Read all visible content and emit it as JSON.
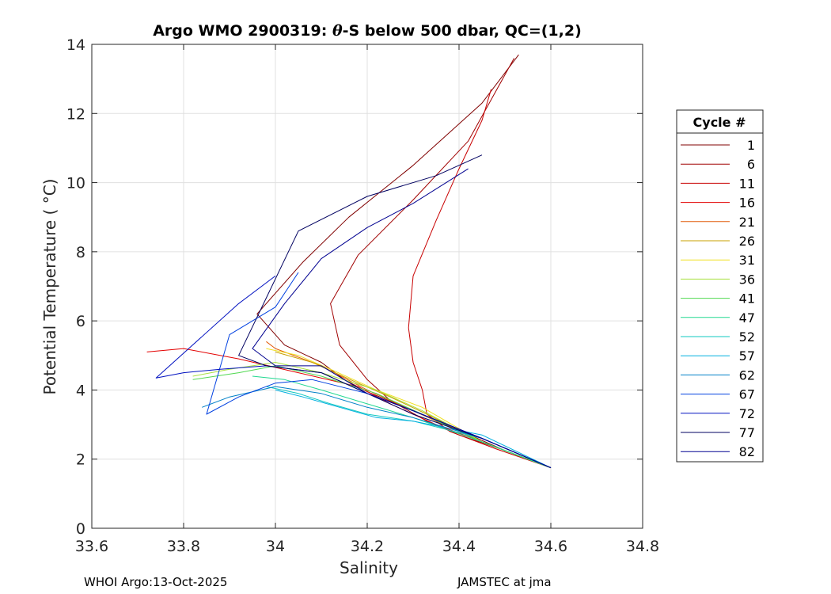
{
  "chart_data": {
    "type": "line",
    "title_prefix": "Argo WMO 2900319: ",
    "title_theta": "θ",
    "title_suffix": "-S below 500 dbar,  QC=(1,2)",
    "xlabel": "Salinity",
    "ylabel": "Potential Temperature ( °C)",
    "xlim": [
      33.6,
      34.8
    ],
    "ylim": [
      0,
      14
    ],
    "xticks": [
      33.6,
      33.8,
      34,
      34.2,
      34.4,
      34.6,
      34.8
    ],
    "xtick_labels": [
      "33.6",
      "33.8",
      "34",
      "34.2",
      "34.4",
      "34.6",
      "34.8"
    ],
    "yticks": [
      0,
      2,
      4,
      6,
      8,
      10,
      12,
      14
    ],
    "ytick_labels": [
      "0",
      "2",
      "4",
      "6",
      "8",
      "10",
      "12",
      "14"
    ],
    "grid": true,
    "legend_title": "Cycle #",
    "legend_position": "right-outside",
    "series": [
      {
        "name": "1",
        "color": "#800000",
        "x": [
          34.6,
          34.5,
          34.38,
          34.3,
          34.2,
          34.15,
          34.1,
          34.02,
          33.96,
          34.06,
          34.16,
          34.3,
          34.45,
          34.53
        ],
        "y": [
          1.75,
          2.25,
          2.95,
          3.4,
          3.95,
          4.3,
          4.8,
          5.3,
          6.2,
          7.7,
          9.0,
          10.5,
          12.3,
          13.7
        ]
      },
      {
        "name": "6",
        "color": "#a00000",
        "x": [
          34.6,
          34.5,
          34.4,
          34.33,
          34.25,
          34.2,
          34.14,
          34.12,
          34.18,
          34.3,
          34.42,
          34.52
        ],
        "y": [
          1.75,
          2.25,
          2.7,
          3.1,
          3.7,
          4.3,
          5.3,
          6.5,
          7.9,
          9.5,
          11.2,
          13.6
        ]
      },
      {
        "name": "11",
        "color": "#c80000",
        "x": [
          34.6,
          34.48,
          34.38,
          34.33,
          34.32,
          34.3,
          34.29,
          34.3,
          34.35,
          34.4,
          34.45,
          34.47
        ],
        "y": [
          1.75,
          2.3,
          2.8,
          3.3,
          4.0,
          4.8,
          5.8,
          7.3,
          8.9,
          10.4,
          11.8,
          12.7
        ]
      },
      {
        "name": "16",
        "color": "#e30000",
        "x": [
          34.6,
          34.45,
          34.35,
          34.25,
          34.18,
          34.05,
          33.92,
          33.8,
          33.72
        ],
        "y": [
          1.75,
          2.5,
          3.0,
          3.6,
          4.1,
          4.5,
          4.9,
          5.2,
          5.1
        ]
      },
      {
        "name": "21",
        "color": "#e25a08",
        "x": [
          34.6,
          34.45,
          34.3,
          34.2,
          34.1,
          34.0,
          33.98
        ],
        "y": [
          1.75,
          2.5,
          3.4,
          4.0,
          4.7,
          5.2,
          5.4
        ]
      },
      {
        "name": "26",
        "color": "#c8a000",
        "x": [
          34.6,
          34.45,
          34.33,
          34.25,
          34.18,
          34.08,
          34.0
        ],
        "y": [
          1.75,
          2.5,
          3.3,
          3.8,
          4.2,
          4.8,
          5.1
        ]
      },
      {
        "name": "31",
        "color": "#f0e020",
        "x": [
          34.6,
          34.45,
          34.32,
          34.22,
          34.12,
          34.05,
          33.98
        ],
        "y": [
          1.75,
          2.5,
          3.5,
          4.0,
          4.6,
          5.0,
          5.2
        ]
      },
      {
        "name": "36",
        "color": "#a8e040",
        "x": [
          34.6,
          34.45,
          34.32,
          34.22,
          34.1,
          34.0,
          33.9,
          33.82
        ],
        "y": [
          1.75,
          2.5,
          3.4,
          4.0,
          4.5,
          4.8,
          4.6,
          4.4
        ]
      },
      {
        "name": "41",
        "color": "#50d850",
        "x": [
          34.6,
          34.45,
          34.32,
          34.22,
          34.1,
          34.0,
          33.92,
          33.82
        ],
        "y": [
          1.75,
          2.5,
          3.3,
          3.9,
          4.4,
          4.7,
          4.5,
          4.3
        ]
      },
      {
        "name": "47",
        "color": "#20d890",
        "x": [
          34.6,
          34.45,
          34.3,
          34.2,
          34.1,
          34.02,
          33.95
        ],
        "y": [
          1.75,
          2.5,
          3.2,
          3.6,
          4.0,
          4.3,
          4.4
        ]
      },
      {
        "name": "52",
        "color": "#10c8c0",
        "x": [
          34.6,
          34.45,
          34.3,
          34.2,
          34.12,
          34.05,
          33.98
        ],
        "y": [
          1.75,
          2.6,
          3.1,
          3.3,
          3.6,
          3.9,
          4.1
        ]
      },
      {
        "name": "57",
        "color": "#00b0e0",
        "x": [
          34.6,
          34.45,
          34.3,
          34.22,
          34.14,
          34.06,
          34.0
        ],
        "y": [
          1.75,
          2.7,
          3.1,
          3.2,
          3.5,
          3.8,
          4.0
        ]
      },
      {
        "name": "62",
        "color": "#0080c8",
        "x": [
          34.6,
          34.45,
          34.3,
          34.2,
          34.1,
          34.0,
          33.9,
          33.84
        ],
        "y": [
          1.75,
          2.6,
          3.2,
          3.5,
          3.9,
          4.1,
          3.8,
          3.5
        ]
      },
      {
        "name": "67",
        "color": "#0040e0",
        "x": [
          34.6,
          34.45,
          34.3,
          34.2,
          34.08,
          34.0,
          33.92,
          33.85,
          33.9,
          34.0,
          34.05
        ],
        "y": [
          1.75,
          2.6,
          3.4,
          3.9,
          4.3,
          4.2,
          3.8,
          3.3,
          5.6,
          6.4,
          7.4
        ]
      },
      {
        "name": "72",
        "color": "#0010c0",
        "x": [
          34.6,
          34.45,
          34.3,
          34.2,
          34.1,
          33.98,
          33.88,
          33.8,
          33.74,
          33.92,
          34.0
        ],
        "y": [
          1.75,
          2.6,
          3.4,
          3.9,
          4.5,
          4.7,
          4.6,
          4.5,
          4.35,
          6.5,
          7.3
        ]
      },
      {
        "name": "77",
        "color": "#000060",
        "x": [
          34.6,
          34.45,
          34.3,
          34.2,
          34.1,
          33.98,
          33.92,
          34.05,
          34.2,
          34.35,
          34.45
        ],
        "y": [
          1.75,
          2.6,
          3.3,
          3.9,
          4.5,
          4.7,
          5.0,
          8.6,
          9.6,
          10.2,
          10.8
        ]
      },
      {
        "name": "82",
        "color": "#000090",
        "x": [
          34.6,
          34.45,
          34.3,
          34.2,
          34.1,
          34.0,
          33.95,
          34.02,
          34.1,
          34.2,
          34.3,
          34.42
        ],
        "y": [
          1.75,
          2.6,
          3.4,
          3.9,
          4.7,
          4.7,
          5.2,
          6.5,
          7.8,
          8.7,
          9.4,
          10.4
        ]
      }
    ]
  },
  "footer": {
    "left": "WHOI Argo:13-Oct-2025",
    "right": "JAMSTEC at jma"
  }
}
